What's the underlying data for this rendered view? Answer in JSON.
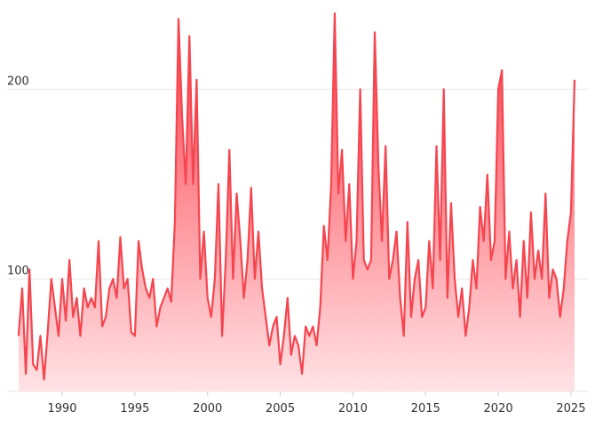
{
  "chart_data": {
    "type": "area",
    "x": [
      1987,
      1987.25,
      1987.5,
      1987.75,
      1988,
      1988.25,
      1988.5,
      1988.75,
      1989,
      1989.25,
      1989.5,
      1989.75,
      1990,
      1990.25,
      1990.5,
      1990.75,
      1991,
      1991.25,
      1991.5,
      1991.75,
      1992,
      1992.25,
      1992.5,
      1992.75,
      1993,
      1993.25,
      1993.5,
      1993.75,
      1994,
      1994.25,
      1994.5,
      1994.75,
      1995,
      1995.25,
      1995.5,
      1995.75,
      1996,
      1996.25,
      1996.5,
      1996.75,
      1997,
      1997.25,
      1997.5,
      1997.75,
      1998,
      1998.25,
      1998.5,
      1998.75,
      1999,
      1999.25,
      1999.5,
      1999.75,
      2000,
      2000.25,
      2000.5,
      2000.75,
      2001,
      2001.25,
      2001.5,
      2001.75,
      2002,
      2002.25,
      2002.5,
      2002.75,
      2003,
      2003.25,
      2003.5,
      2003.75,
      2004,
      2004.25,
      2004.5,
      2004.75,
      2005,
      2005.25,
      2005.5,
      2005.75,
      2006,
      2006.25,
      2006.5,
      2006.75,
      2007,
      2007.25,
      2007.5,
      2007.75,
      2008,
      2008.25,
      2008.5,
      2008.75,
      2009,
      2009.25,
      2009.5,
      2009.75,
      2010,
      2010.25,
      2010.5,
      2010.75,
      2011,
      2011.25,
      2011.5,
      2011.75,
      2012,
      2012.25,
      2012.5,
      2012.75,
      2013,
      2013.25,
      2013.5,
      2013.75,
      2014,
      2014.25,
      2014.5,
      2014.75,
      2015,
      2015.25,
      2015.5,
      2015.75,
      2016,
      2016.25,
      2016.5,
      2016.75,
      2017,
      2017.25,
      2017.5,
      2017.75,
      2018,
      2018.25,
      2018.5,
      2018.75,
      2019,
      2019.25,
      2019.5,
      2019.75,
      2020,
      2020.25,
      2020.5,
      2020.75,
      2021,
      2021.25,
      2021.5,
      2021.75,
      2022,
      2022.25,
      2022.5,
      2022.75,
      2023,
      2023.25,
      2023.5,
      2023.75,
      2024,
      2024.25,
      2024.5,
      2024.75,
      2025,
      2025.25
    ],
    "values": [
      70,
      95,
      50,
      105,
      55,
      52,
      70,
      47,
      72,
      100,
      85,
      70,
      100,
      78,
      110,
      80,
      90,
      70,
      95,
      85,
      90,
      85,
      120,
      75,
      80,
      95,
      100,
      90,
      122,
      95,
      100,
      72,
      70,
      120,
      105,
      95,
      90,
      100,
      75,
      85,
      90,
      95,
      88,
      130,
      237,
      185,
      150,
      228,
      150,
      205,
      100,
      125,
      90,
      80,
      100,
      150,
      70,
      110,
      168,
      100,
      145,
      120,
      90,
      110,
      148,
      100,
      125,
      95,
      80,
      65,
      75,
      80,
      55,
      70,
      90,
      60,
      70,
      65,
      50,
      75,
      70,
      75,
      65,
      85,
      128,
      110,
      150,
      240,
      145,
      168,
      120,
      150,
      100,
      120,
      200,
      110,
      105,
      110,
      230,
      160,
      120,
      170,
      100,
      110,
      125,
      90,
      70,
      130,
      80,
      100,
      110,
      80,
      85,
      120,
      95,
      170,
      110,
      200,
      90,
      140,
      100,
      80,
      95,
      70,
      85,
      110,
      95,
      138,
      120,
      155,
      110,
      120,
      200,
      210,
      100,
      125,
      95,
      110,
      80,
      120,
      90,
      135,
      100,
      115,
      100,
      145,
      90,
      105,
      100,
      80,
      95,
      120,
      135,
      205
    ],
    "color": "#f5454f",
    "xlim": [
      1986.9,
      2025.45
    ],
    "xticks": [
      1990,
      1995,
      2000,
      2005,
      2010,
      2015,
      2020,
      2025
    ],
    "ylim": [
      40.7,
      247
    ],
    "yticks": [
      100,
      200
    ],
    "grid": true
  }
}
